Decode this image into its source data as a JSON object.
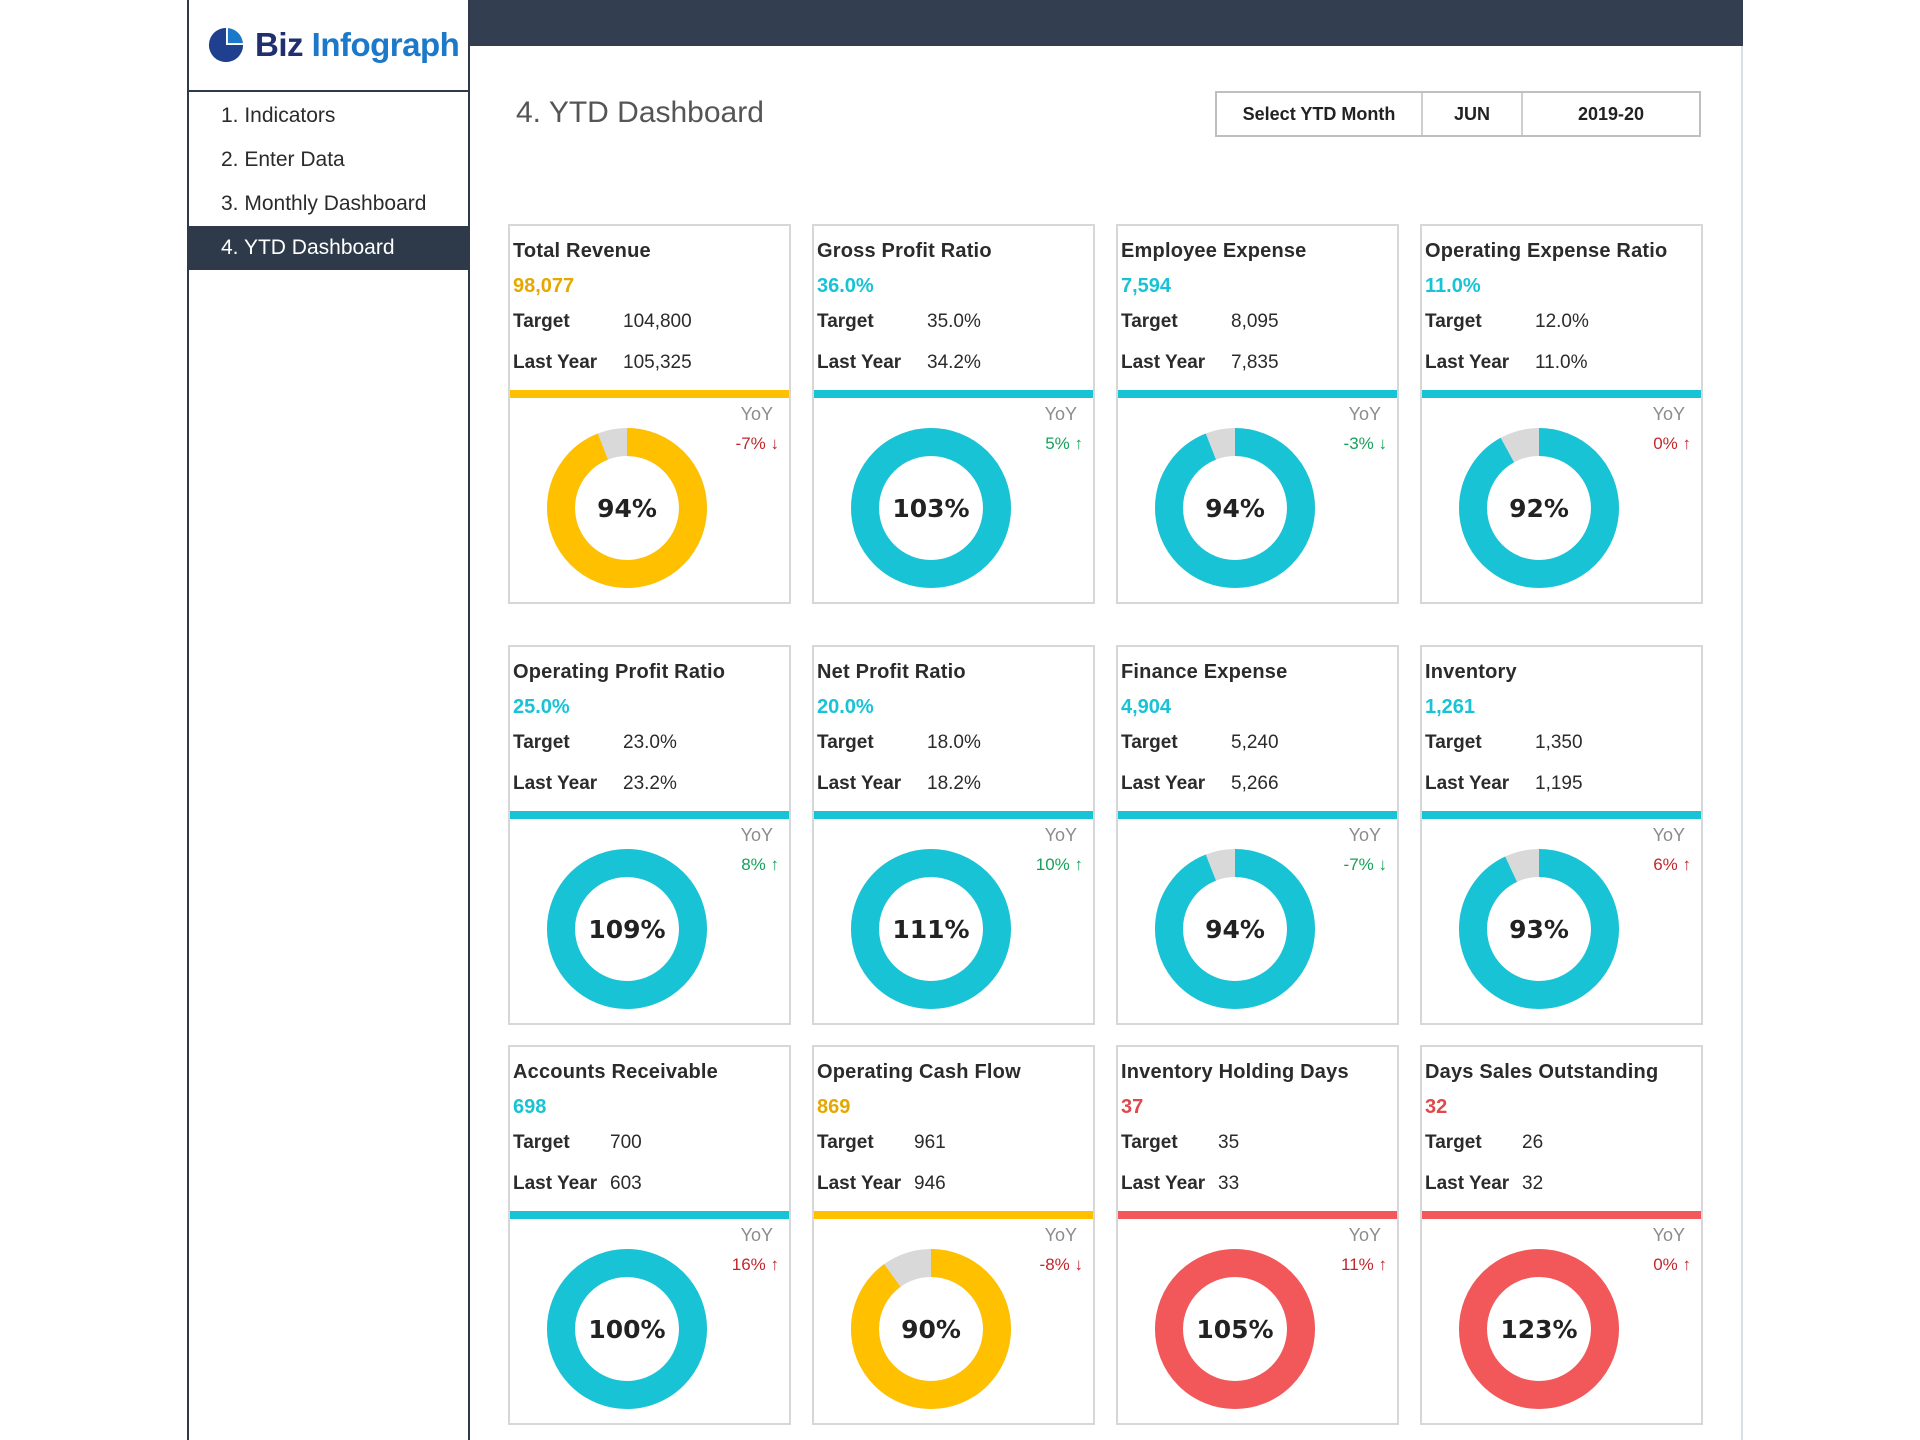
{
  "brand": {
    "biz": "Biz",
    "infograph": "Infograph"
  },
  "nav": [
    {
      "label": "1. Indicators"
    },
    {
      "label": "2. Enter Data"
    },
    {
      "label": "3. Monthly Dashboard"
    },
    {
      "label": "4. YTD Dashboard"
    }
  ],
  "page": {
    "title": "4. YTD Dashboard"
  },
  "selector": {
    "label": "Select YTD Month",
    "month": "JUN",
    "year": "2019-20"
  },
  "colors": {
    "yellow": "#ffc000",
    "cyan": "#19c3d6",
    "red": "#f2585a",
    "grey": "#d9d9d9",
    "up_green": "#18a05a",
    "down_red": "#c0272d",
    "value_red": "#e0484b"
  },
  "cards": [
    {
      "title": "Total Revenue",
      "value": "98,077",
      "target_label": "Target",
      "target": "104,800",
      "ly_label": "Last Year",
      "ly": "105,325",
      "yoy_label": "YoY",
      "yoy": "-7% ↓",
      "pct_label": "94%",
      "fill": 0.94,
      "color": "yellow",
      "yoy_color": "down_red"
    },
    {
      "title": "Gross Profit Ratio",
      "value": "36.0%",
      "target_label": "Target",
      "target": "35.0%",
      "ly_label": "Last Year",
      "ly": "34.2%",
      "yoy_label": "YoY",
      "yoy": "5% ↑",
      "pct_label": "103%",
      "fill": 1.0,
      "color": "cyan",
      "yoy_color": "up_green"
    },
    {
      "title": "Employee Expense",
      "value": "7,594",
      "target_label": "Target",
      "target": "8,095",
      "ly_label": "Last Year",
      "ly": "7,835",
      "yoy_label": "YoY",
      "yoy": "-3% ↓",
      "pct_label": "94%",
      "fill": 0.94,
      "color": "cyan",
      "yoy_color": "up_green"
    },
    {
      "title": "Operating Expense Ratio",
      "value": "11.0%",
      "target_label": "Target",
      "target": "12.0%",
      "ly_label": "Last Year",
      "ly": "11.0%",
      "yoy_label": "YoY",
      "yoy": "0% ↑",
      "pct_label": "92%",
      "fill": 0.92,
      "color": "cyan",
      "yoy_color": "down_red"
    },
    {
      "title": "Operating Profit Ratio",
      "value": "25.0%",
      "target_label": "Target",
      "target": "23.0%",
      "ly_label": "Last Year",
      "ly": "23.2%",
      "yoy_label": "YoY",
      "yoy": "8% ↑",
      "pct_label": "109%",
      "fill": 1.0,
      "color": "cyan",
      "yoy_color": "up_green"
    },
    {
      "title": "Net Profit Ratio",
      "value": "20.0%",
      "target_label": "Target",
      "target": "18.0%",
      "ly_label": "Last Year",
      "ly": "18.2%",
      "yoy_label": "YoY",
      "yoy": "10% ↑",
      "pct_label": "111%",
      "fill": 1.0,
      "color": "cyan",
      "yoy_color": "up_green"
    },
    {
      "title": "Finance Expense",
      "value": "4,904",
      "target_label": "Target",
      "target": "5,240",
      "ly_label": "Last Year",
      "ly": "5,266",
      "yoy_label": "YoY",
      "yoy": "-7% ↓",
      "pct_label": "94%",
      "fill": 0.94,
      "color": "cyan",
      "yoy_color": "up_green"
    },
    {
      "title": "Inventory",
      "value": "1,261",
      "target_label": "Target",
      "target": "1,350",
      "ly_label": "Last Year",
      "ly": "1,195",
      "yoy_label": "YoY",
      "yoy": "6% ↑",
      "pct_label": "93%",
      "fill": 0.93,
      "color": "cyan",
      "yoy_color": "down_red"
    },
    {
      "title": "Accounts Receivable",
      "value": "698",
      "target_label": "Target",
      "target": "700",
      "ly_label": "Last Year",
      "ly": "603",
      "yoy_label": "YoY",
      "yoy": "16% ↑",
      "pct_label": "100%",
      "fill": 1.0,
      "color": "cyan",
      "yoy_color": "down_red"
    },
    {
      "title": "Operating Cash Flow",
      "value": "869",
      "target_label": "Target",
      "target": "961",
      "ly_label": "Last Year",
      "ly": "946",
      "yoy_label": "YoY",
      "yoy": "-8% ↓",
      "pct_label": "90%",
      "fill": 0.9,
      "color": "yellow",
      "yoy_color": "down_red"
    },
    {
      "title": "Inventory Holding Days",
      "value": "37",
      "target_label": "Target",
      "target": "35",
      "ly_label": "Last Year",
      "ly": "33",
      "yoy_label": "YoY",
      "yoy": "11% ↑",
      "pct_label": "105%",
      "fill": 1.0,
      "color": "red",
      "yoy_color": "down_red"
    },
    {
      "title": "Days Sales Outstanding",
      "value": "32",
      "target_label": "Target",
      "target": "26",
      "ly_label": "Last Year",
      "ly": "32",
      "yoy_label": "YoY",
      "yoy": "0% ↑",
      "pct_label": "123%",
      "fill": 1.0,
      "color": "red",
      "yoy_color": "down_red"
    }
  ]
}
